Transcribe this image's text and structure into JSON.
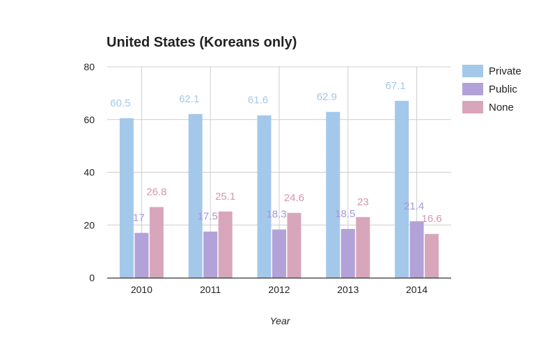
{
  "chart_data": {
    "type": "bar",
    "title": "United States (Koreans only)",
    "xlabel": "Year",
    "ylabel": "",
    "categories": [
      "2010",
      "2011",
      "2012",
      "2013",
      "2014"
    ],
    "series": [
      {
        "name": "Private",
        "color": "#a4c8ea",
        "label_color": "#a4c8ea",
        "values": [
          60.5,
          62.1,
          61.6,
          62.9,
          67.1
        ],
        "labels": [
          "60.5",
          "62.1",
          "61.6",
          "62.9",
          "67.1"
        ]
      },
      {
        "name": "Public",
        "color": "#b2a2d8",
        "label_color": "#a796d6",
        "values": [
          17,
          17.5,
          18.3,
          18.5,
          21.4
        ],
        "labels": [
          "17",
          "17.5",
          "18.3",
          "18.5",
          "21.4"
        ]
      },
      {
        "name": "None",
        "color": "#d8a6bb",
        "label_color": "#d596b1",
        "values": [
          26.8,
          25.1,
          24.6,
          23,
          16.6
        ],
        "labels": [
          "26.8",
          "25.1",
          "24.6",
          "23",
          "16.6"
        ]
      }
    ],
    "ylim": [
      0,
      80
    ],
    "yticks": [
      "0",
      "20",
      "40",
      "60",
      "80"
    ],
    "grid": true,
    "legend_position": "right"
  }
}
